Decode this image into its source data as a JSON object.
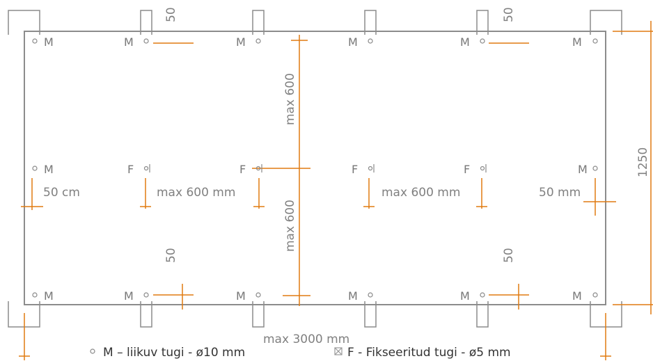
{
  "labels": {
    "movable": "M",
    "fixed": "F"
  },
  "dimensions": {
    "total_width": "max 3000 mm",
    "total_height": "1250",
    "vertical_span_top": "max 600",
    "vertical_span_bottom": "max 600",
    "span_left": "max 600 mm",
    "span_right": "max 600 mm",
    "edge_left": "50 cm",
    "edge_right": "50 mm",
    "offset_top_left": "50",
    "offset_top_right": "50",
    "offset_bottom_left": "50",
    "offset_bottom_right": "50"
  },
  "legend": {
    "movable": "M – liikuv tugi - ø10 mm",
    "fixed": "F - Fikseeritud tugi - ø5 mm"
  },
  "colors": {
    "outline": "#8c8c8c",
    "dimension_line": "#e07a10",
    "text": "#777777",
    "legend_text": "#333333"
  }
}
